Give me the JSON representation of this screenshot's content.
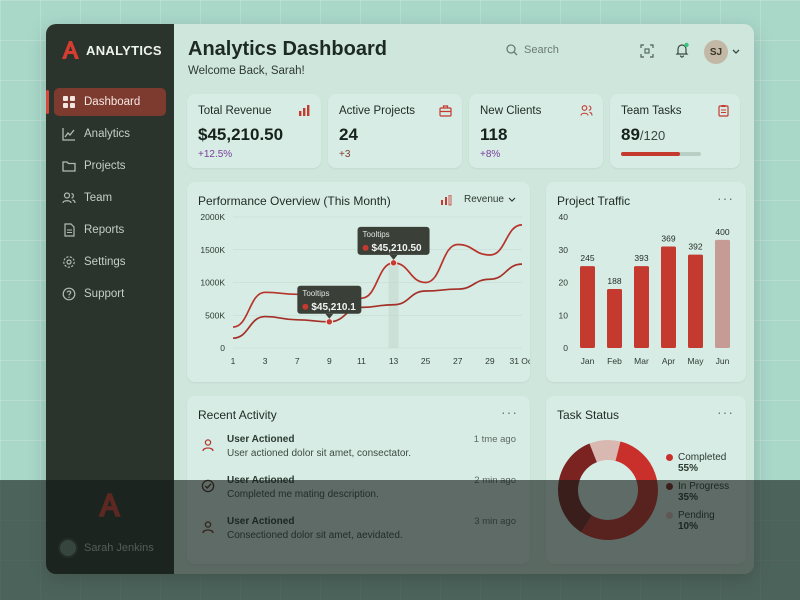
{
  "brand": {
    "name": "ANALYTICS"
  },
  "sidebar": {
    "items": [
      {
        "label": "Dashboard",
        "icon": "grid-icon"
      },
      {
        "label": "Analytics",
        "icon": "chart-line-icon"
      },
      {
        "label": "Projects",
        "icon": "folder-icon"
      },
      {
        "label": "Team",
        "icon": "users-icon"
      },
      {
        "label": "Reports",
        "icon": "document-icon"
      },
      {
        "label": "Settings",
        "icon": "gear-icon"
      },
      {
        "label": "Support",
        "icon": "help-circle-icon"
      }
    ],
    "user_name": "Sarah Jenkins"
  },
  "header": {
    "title": "Analytics Dashboard",
    "welcome": "Welcome Back, Sarah!",
    "search_placeholder": "Search",
    "avatar_initials": "SJ"
  },
  "stats": [
    {
      "label": "Total Revenue",
      "value": "$45,210.50",
      "change": "+12.5%"
    },
    {
      "label": "Active Projects",
      "value": "24",
      "change": "+3"
    },
    {
      "label": "New Clients",
      "value": "118",
      "change": "+8%"
    },
    {
      "label": "Team Tasks",
      "value": "89",
      "total": "/120",
      "progress": 0.74
    }
  ],
  "performance": {
    "title": "Performance Overview (This Month)",
    "selector": "Revenue",
    "y_ticks": [
      "2000K",
      "1500K",
      "1000K",
      "500K",
      "0"
    ],
    "x_ticks": [
      "1",
      "3",
      "7",
      "9",
      "11",
      "13",
      "25",
      "27",
      "29",
      "31 Oct"
    ],
    "tooltip1": {
      "label": "Tooltips",
      "value": "$45,210.1"
    },
    "tooltip2": {
      "label": "Tooltips",
      "value": "$45,210.50"
    }
  },
  "traffic": {
    "title": "Project Traffic",
    "y_ticks": [
      "40",
      "30",
      "20",
      "10",
      "0"
    ]
  },
  "activity": {
    "title": "Recent Activity",
    "items": [
      {
        "title": "User Actioned",
        "desc": "User actioned dolor sit amet, consectator.",
        "time": "1 tme ago"
      },
      {
        "title": "User Actioned",
        "desc": "Completed me mating description.",
        "time": "2 min ago"
      },
      {
        "title": "User Actioned",
        "desc": "Consectioned dolor sit amet, aevidated.",
        "time": "3 min ago"
      }
    ]
  },
  "task_status": {
    "title": "Task Status",
    "legend": [
      {
        "label": "Completed",
        "pct": "55%",
        "color": "#c9302c"
      },
      {
        "label": "In Progress",
        "pct": "35%",
        "color": "#7a2320"
      },
      {
        "label": "Pending",
        "pct": "10%",
        "color": "#d9b8b2"
      }
    ]
  },
  "chart_data": [
    {
      "type": "line",
      "title": "Performance Overview (This Month)",
      "x": [
        "1",
        "3",
        "7",
        "9",
        "11",
        "13",
        "25",
        "27",
        "29",
        "31 Oct"
      ],
      "ylim": [
        0,
        2000
      ],
      "series": [
        {
          "values": [
            320,
            850,
            820,
            640,
            760,
            1300,
            1000,
            1580,
            1420,
            1880
          ]
        },
        {
          "values": [
            150,
            480,
            430,
            400,
            620,
            660,
            870,
            900,
            1050,
            1280
          ]
        }
      ]
    },
    {
      "type": "bar",
      "title": "Project Traffic",
      "categories": [
        "Jan",
        "Feb",
        "Mar",
        "Apr",
        "May",
        "Jun"
      ],
      "values": [
        245,
        188,
        393,
        369,
        392,
        400
      ],
      "labels": [
        "245",
        "188",
        "393",
        "369",
        "392",
        "400"
      ],
      "heights": [
        25,
        18,
        25,
        31,
        28.5,
        33
      ],
      "ylim": [
        0,
        40
      ]
    },
    {
      "type": "pie",
      "title": "Task Status",
      "categories": [
        "Completed",
        "In Progress",
        "Pending"
      ],
      "values": [
        55,
        35,
        10
      ]
    }
  ]
}
